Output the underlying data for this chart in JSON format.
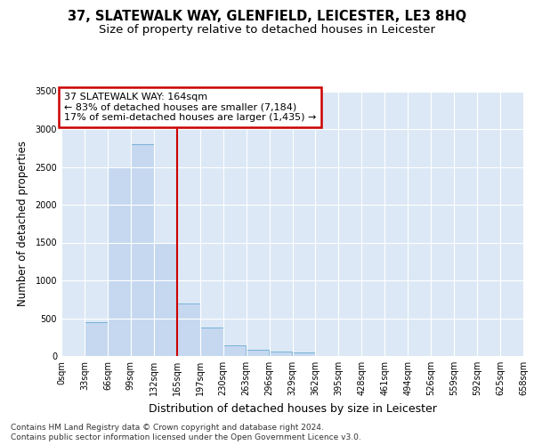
{
  "title1": "37, SLATEWALK WAY, GLENFIELD, LEICESTER, LE3 8HQ",
  "title2": "Size of property relative to detached houses in Leicester",
  "xlabel": "Distribution of detached houses by size in Leicester",
  "ylabel": "Number of detached properties",
  "footnote1": "Contains HM Land Registry data © Crown copyright and database right 2024.",
  "footnote2": "Contains public sector information licensed under the Open Government Licence v3.0.",
  "annotation_line1": "37 SLATEWALK WAY: 164sqm",
  "annotation_line2": "← 83% of detached houses are smaller (7,184)",
  "annotation_line3": "17% of semi-detached houses are larger (1,435) →",
  "bin_edges": [
    0,
    33,
    66,
    99,
    132,
    165,
    198,
    231,
    264,
    297,
    330,
    363,
    396,
    429,
    462,
    495,
    528,
    561,
    594,
    627,
    660
  ],
  "xtick_labels": [
    "0sqm",
    "33sqm",
    "66sqm",
    "99sqm",
    "132sqm",
    "165sqm",
    "197sqm",
    "230sqm",
    "263sqm",
    "296sqm",
    "329sqm",
    "362sqm",
    "395sqm",
    "428sqm",
    "461sqm",
    "494sqm",
    "526sqm",
    "559sqm",
    "592sqm",
    "625sqm",
    "658sqm"
  ],
  "bar_heights": [
    5,
    450,
    2500,
    2800,
    1500,
    700,
    380,
    140,
    80,
    55,
    50,
    0,
    0,
    0,
    0,
    0,
    0,
    0,
    0,
    0
  ],
  "bar_color": "#c5d8f0",
  "bar_edge_color": "#6aabd2",
  "vline_color": "#cc0000",
  "vline_x": 165,
  "ylim": [
    0,
    3500
  ],
  "yticks": [
    0,
    500,
    1000,
    1500,
    2000,
    2500,
    3000,
    3500
  ],
  "axes_bg_color": "#dce8f5",
  "grid_color": "#ffffff",
  "fig_bg_color": "#ffffff",
  "annotation_box_edgecolor": "#cc0000",
  "title1_fontsize": 10.5,
  "title2_fontsize": 9.5,
  "tick_label_fontsize": 7,
  "xlabel_fontsize": 9,
  "ylabel_fontsize": 8.5,
  "annotation_fontsize": 8,
  "footnote_fontsize": 6.5
}
